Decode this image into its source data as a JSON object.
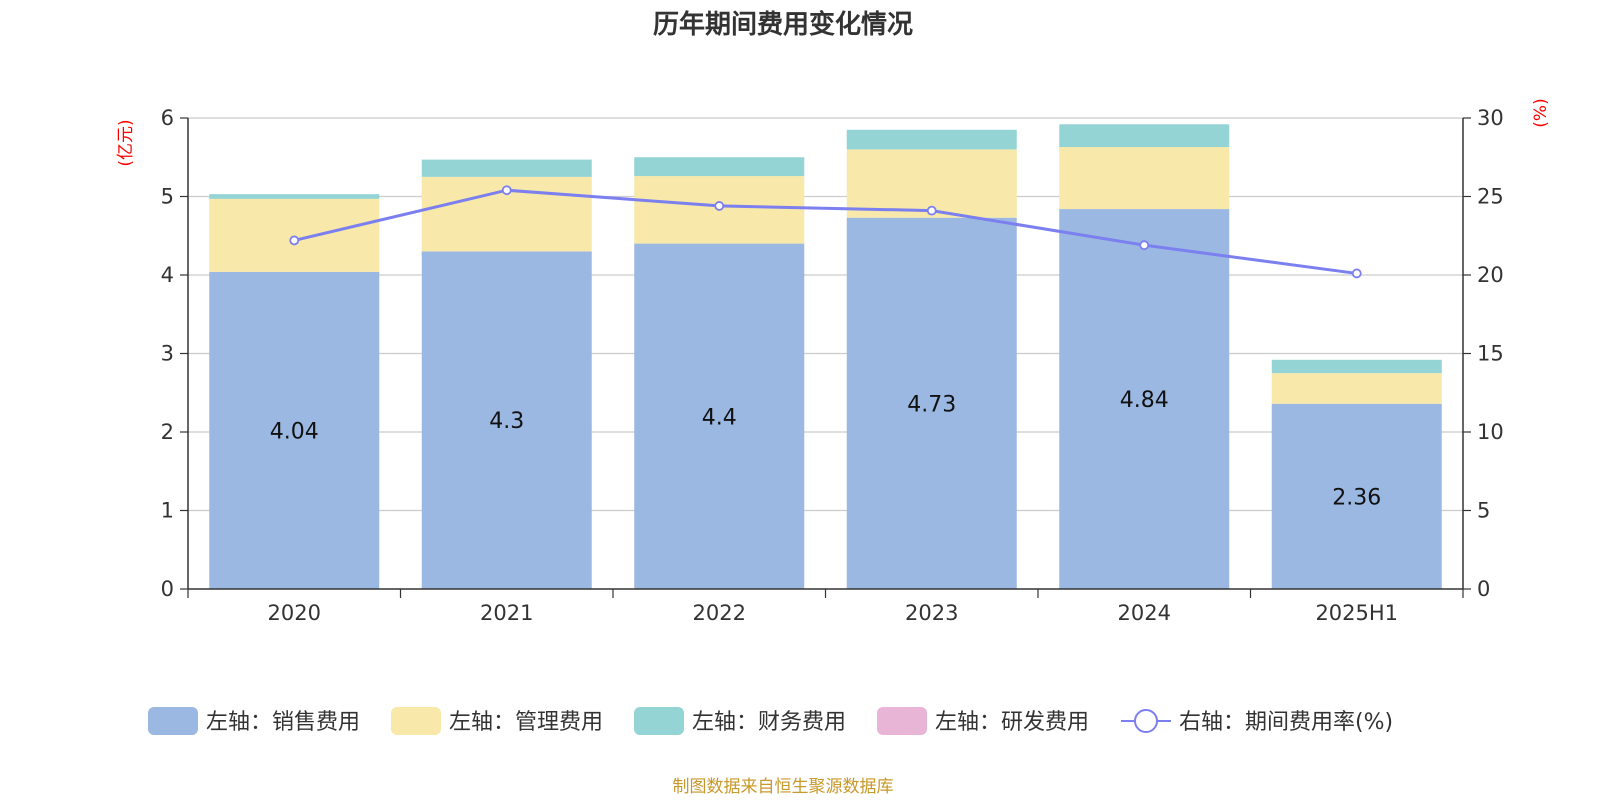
{
  "chart_data": {
    "type": "bar",
    "title": "历年期间费用变化情况",
    "categories": [
      "2020",
      "2021",
      "2022",
      "2023",
      "2024",
      "2025H1"
    ],
    "left_axis": {
      "unit_label": "(亿元)",
      "ylim": [
        0,
        6
      ],
      "ticks": [
        "0",
        "1",
        "2",
        "3",
        "4",
        "5",
        "6"
      ]
    },
    "right_axis": {
      "unit_label": "(%)",
      "ylim": [
        0,
        30
      ],
      "ticks": [
        "0",
        "5",
        "10",
        "15",
        "20",
        "25",
        "30"
      ]
    },
    "grid": true,
    "legend_position": "bottom",
    "series": [
      {
        "name": "左轴：销售费用",
        "kind": "bar",
        "axis": "left",
        "color": "#9bb8e2",
        "values": [
          4.04,
          4.3,
          4.4,
          4.73,
          4.84,
          2.36
        ],
        "labels": [
          "4.04",
          "4.3",
          "4.4",
          "4.73",
          "4.84",
          "2.36"
        ]
      },
      {
        "name": "左轴：管理费用",
        "kind": "bar",
        "axis": "left",
        "color": "#f8e8a9",
        "values": [
          0.93,
          0.95,
          0.86,
          0.87,
          0.79,
          0.39
        ]
      },
      {
        "name": "左轴：财务费用",
        "kind": "bar",
        "axis": "left",
        "color": "#95d4d4",
        "values": [
          0.06,
          0.22,
          0.24,
          0.25,
          0.29,
          0.17
        ]
      },
      {
        "name": "左轴：研发费用",
        "kind": "bar",
        "axis": "left",
        "color": "#e8b5d6",
        "values": [
          0,
          0,
          0,
          0,
          0,
          0
        ]
      },
      {
        "name": "右轴：期间费用率(%)",
        "kind": "line",
        "axis": "right",
        "color": "#7b7fef",
        "values": [
          22.2,
          25.4,
          24.4,
          24.1,
          21.9,
          20.1
        ]
      }
    ],
    "source": "制图数据来自恒生聚源数据库"
  }
}
